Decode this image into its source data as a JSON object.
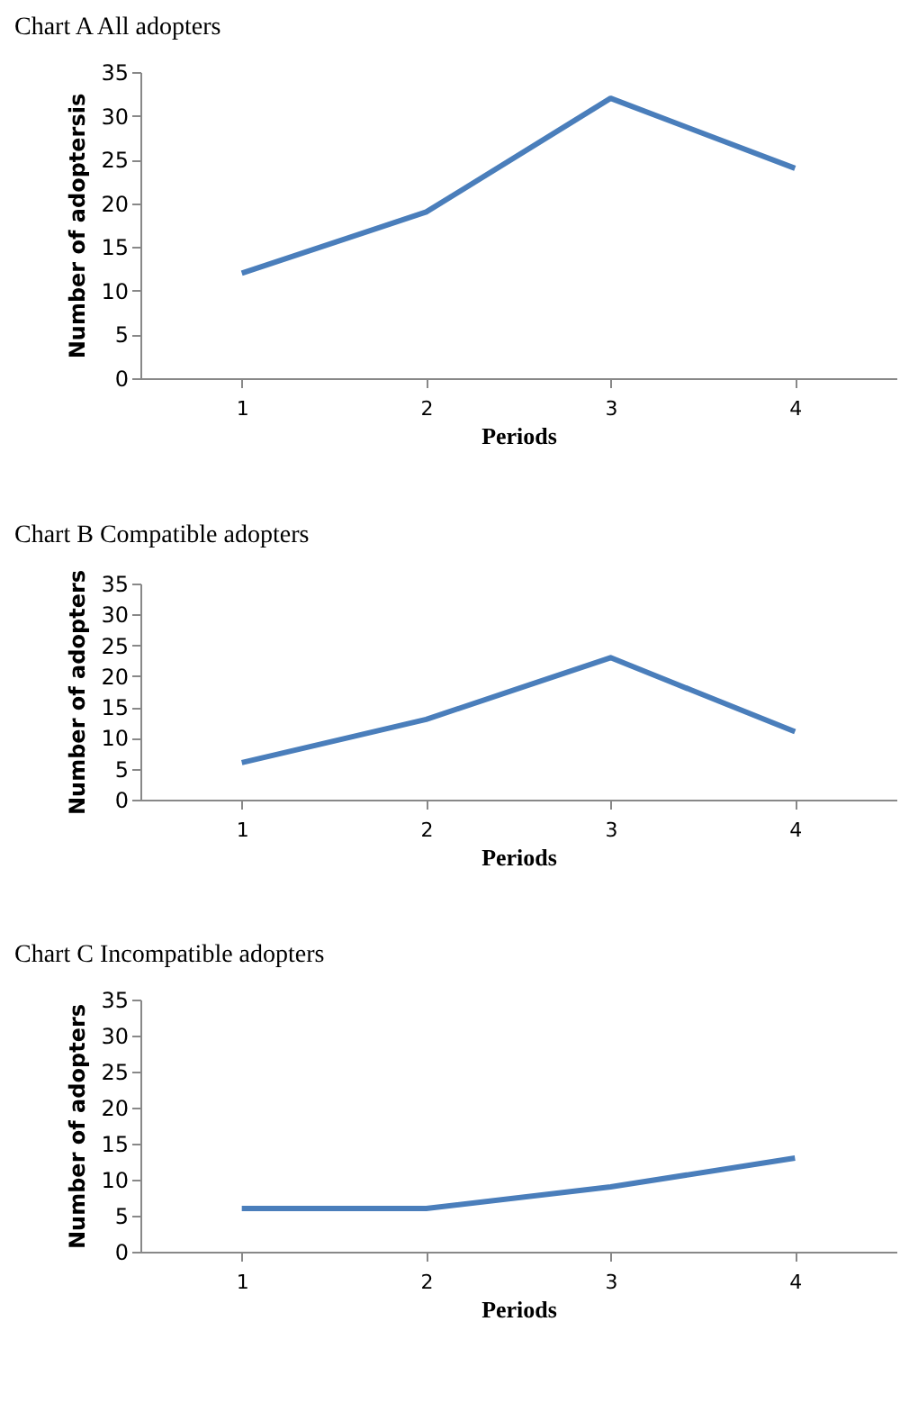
{
  "chart_data": [
    {
      "type": "line",
      "title": "Chart A   All adopters",
      "xlabel": "Periods",
      "ylabel": "Number of adoptersis",
      "categories": [
        "1",
        "2",
        "3",
        "4"
      ],
      "values": [
        12,
        19,
        32,
        24
      ],
      "color": "#4a7ebb",
      "ylim": [
        0,
        35
      ],
      "yticks": [
        0,
        5,
        10,
        15,
        20,
        25,
        30,
        35
      ],
      "grid": false,
      "marker": "none"
    },
    {
      "type": "line",
      "title": "Chart B   Compatible adopters",
      "xlabel": "Periods",
      "ylabel": "Number of adopters",
      "categories": [
        "1",
        "2",
        "3",
        "4"
      ],
      "values": [
        6,
        13,
        23,
        11
      ],
      "color": "#4a7ebb",
      "ylim": [
        0,
        35
      ],
      "yticks": [
        0,
        5,
        10,
        15,
        20,
        25,
        30,
        35
      ],
      "grid": false,
      "marker": "none"
    },
    {
      "type": "line",
      "title": "Chart C   Incompatible adopters",
      "xlabel": "Periods",
      "ylabel": "Number of adopters",
      "categories": [
        "1",
        "2",
        "3",
        "4"
      ],
      "values": [
        6,
        6,
        9,
        13
      ],
      "color": "#4a7ebb",
      "ylim": [
        0,
        35
      ],
      "yticks": [
        0,
        5,
        10,
        15,
        20,
        25,
        30,
        35
      ],
      "grid": false,
      "marker": "none"
    }
  ]
}
